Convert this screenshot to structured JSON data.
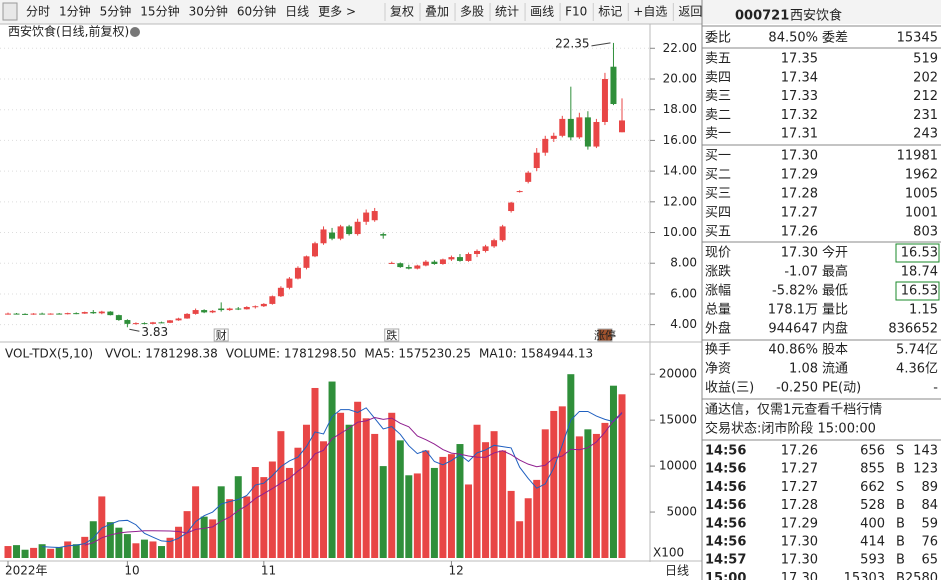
{
  "toolbar": {
    "periods": [
      "分时",
      "1分钟",
      "5分钟",
      "15分钟",
      "30分钟",
      "60分钟",
      "日线",
      "更多 >"
    ],
    "active": 6,
    "active_color": "#e02020",
    "tools": [
      "复权",
      "叠加",
      "多股",
      "统计",
      "画线",
      "F10",
      "标记",
      "+自选",
      "返回"
    ]
  },
  "price_chart": {
    "type": "candlestick",
    "title": "西安饮食(日线,前复权)",
    "high_label": "22.35",
    "low_label": "3.83",
    "up_color": "#e84646",
    "down_color": "#2f8f3a",
    "grid": true,
    "ylim": [
      3.0,
      22.8
    ],
    "yticks": [
      {
        "value": 4,
        "label": "4.00"
      },
      {
        "value": 6,
        "label": "6.00"
      },
      {
        "value": 8,
        "label": "8.00"
      },
      {
        "value": 10,
        "label": "10.00"
      },
      {
        "value": 12,
        "label": "12.00"
      },
      {
        "value": 14,
        "label": "14.00"
      },
      {
        "value": 16,
        "label": "16.00"
      },
      {
        "value": 18,
        "label": "18.00"
      },
      {
        "value": 20,
        "label": "20.00"
      },
      {
        "value": 22,
        "label": "22.00"
      }
    ],
    "categories": [
      "2022年",
      null,
      null,
      null,
      null,
      null,
      null,
      null,
      null,
      null,
      null,
      null,
      null,
      null,
      "10",
      null,
      null,
      null,
      null,
      null,
      null,
      null,
      null,
      null,
      null,
      null,
      null,
      null,
      null,
      null,
      "11",
      null,
      null,
      null,
      null,
      null,
      null,
      null,
      null,
      null,
      null,
      null,
      null,
      null,
      null,
      null,
      null,
      null,
      null,
      null,
      null,
      null,
      "12",
      null,
      null,
      null,
      null,
      null,
      null,
      null,
      null,
      null,
      null,
      null,
      null,
      null,
      null,
      null,
      null,
      null,
      null,
      null,
      null
    ],
    "events": [
      null,
      null,
      null,
      null,
      null,
      null,
      null,
      null,
      null,
      null,
      null,
      null,
      null,
      null,
      null,
      null,
      null,
      null,
      null,
      null,
      null,
      null,
      null,
      null,
      null,
      "财",
      null,
      null,
      null,
      null,
      null,
      null,
      null,
      null,
      null,
      null,
      null,
      null,
      null,
      null,
      null,
      null,
      null,
      null,
      null,
      "跌",
      null,
      null,
      null,
      null,
      null,
      null,
      null,
      null,
      null,
      null,
      null,
      null,
      null,
      null,
      null,
      null,
      null,
      null,
      null,
      null,
      null,
      null,
      null,
      null,
      "涨停",
      null,
      null
    ],
    "ohlc": [
      [
        4.7,
        4.78,
        4.65,
        4.72
      ],
      [
        4.72,
        4.76,
        4.66,
        4.7
      ],
      [
        4.7,
        4.74,
        4.64,
        4.68
      ],
      [
        4.68,
        4.75,
        4.64,
        4.72
      ],
      [
        4.72,
        4.78,
        4.68,
        4.7
      ],
      [
        4.7,
        4.74,
        4.65,
        4.72
      ],
      [
        4.72,
        4.76,
        4.66,
        4.68
      ],
      [
        4.68,
        4.78,
        4.66,
        4.75
      ],
      [
        4.75,
        4.8,
        4.68,
        4.72
      ],
      [
        4.72,
        4.85,
        4.7,
        4.82
      ],
      [
        4.82,
        4.95,
        4.7,
        4.74
      ],
      [
        4.74,
        4.9,
        4.68,
        4.85
      ],
      [
        4.85,
        4.88,
        4.6,
        4.62
      ],
      [
        4.62,
        4.65,
        4.25,
        4.3
      ],
      [
        4.3,
        4.35,
        3.83,
        4.05
      ],
      [
        4.05,
        4.15,
        4.0,
        4.1
      ],
      [
        4.1,
        4.15,
        4.02,
        4.05
      ],
      [
        4.05,
        4.18,
        4.02,
        4.15
      ],
      [
        4.15,
        4.2,
        4.1,
        4.12
      ],
      [
        4.12,
        4.3,
        4.1,
        4.28
      ],
      [
        4.28,
        4.45,
        4.25,
        4.4
      ],
      [
        4.4,
        4.75,
        4.38,
        4.7
      ],
      [
        4.7,
        5.05,
        4.65,
        4.95
      ],
      [
        4.95,
        5.0,
        4.75,
        4.8
      ],
      [
        4.8,
        4.95,
        4.75,
        4.9
      ],
      [
        5.05,
        5.45,
        4.85,
        4.95
      ],
      [
        4.95,
        5.1,
        4.9,
        5.05
      ],
      [
        5.05,
        5.15,
        4.95,
        5.0
      ],
      [
        5.0,
        5.2,
        4.98,
        5.15
      ],
      [
        5.15,
        5.25,
        5.05,
        5.2
      ],
      [
        5.2,
        5.4,
        5.15,
        5.35
      ],
      [
        5.35,
        5.9,
        5.3,
        5.85
      ],
      [
        5.85,
        6.5,
        5.8,
        6.4
      ],
      [
        6.4,
        7.1,
        6.3,
        7.0
      ],
      [
        7.0,
        7.8,
        6.95,
        7.7
      ],
      [
        7.7,
        8.5,
        7.6,
        8.45
      ],
      [
        8.45,
        9.4,
        8.4,
        9.3
      ],
      [
        9.3,
        10.4,
        9.2,
        10.2
      ],
      [
        10.0,
        10.3,
        9.5,
        9.6
      ],
      [
        9.6,
        10.5,
        9.5,
        10.4
      ],
      [
        10.4,
        10.5,
        9.8,
        9.9
      ],
      [
        9.9,
        10.9,
        9.8,
        10.7
      ],
      [
        10.7,
        11.5,
        10.5,
        11.3
      ],
      [
        10.8,
        11.6,
        10.7,
        11.4
      ],
      [
        9.9,
        10.0,
        9.6,
        9.8
      ],
      [
        8.0,
        8.1,
        7.95,
        8.02
      ],
      [
        8.0,
        8.05,
        7.7,
        7.75
      ],
      [
        7.75,
        7.9,
        7.6,
        7.65
      ],
      [
        7.65,
        7.9,
        7.6,
        7.85
      ],
      [
        7.85,
        8.2,
        7.8,
        8.1
      ],
      [
        8.1,
        8.2,
        7.9,
        7.95
      ],
      [
        7.95,
        8.3,
        7.9,
        8.25
      ],
      [
        8.25,
        8.5,
        8.15,
        8.4
      ],
      [
        8.4,
        8.6,
        8.1,
        8.15
      ],
      [
        8.15,
        8.7,
        8.1,
        8.6
      ],
      [
        8.6,
        8.9,
        8.4,
        8.8
      ],
      [
        8.8,
        9.2,
        8.7,
        9.1
      ],
      [
        9.1,
        9.6,
        9.0,
        9.5
      ],
      [
        9.5,
        10.5,
        9.4,
        10.4
      ],
      [
        11.4,
        12.0,
        11.3,
        11.95
      ],
      [
        12.7,
        12.75,
        12.6,
        12.7
      ],
      [
        13.3,
        14.0,
        13.2,
        13.9
      ],
      [
        14.2,
        15.5,
        14.0,
        15.2
      ],
      [
        15.2,
        16.3,
        15.0,
        16.1
      ],
      [
        16.1,
        16.5,
        15.9,
        16.3
      ],
      [
        16.3,
        17.6,
        16.2,
        17.4
      ],
      [
        17.4,
        19.5,
        16.0,
        16.2
      ],
      [
        16.2,
        17.8,
        16.1,
        17.5
      ],
      [
        17.5,
        17.9,
        15.4,
        15.6
      ],
      [
        15.6,
        17.4,
        15.5,
        17.2
      ],
      [
        17.2,
        20.4,
        17.0,
        20.0
      ],
      [
        20.8,
        22.35,
        18.3,
        18.37
      ],
      [
        16.53,
        18.74,
        16.53,
        17.3
      ]
    ]
  },
  "volume_chart": {
    "type": "bar",
    "indicator": "VOL-TDX(5,10)",
    "unit_label": "X100",
    "period_label": "日线",
    "legend": [
      {
        "text": "VVOL: 1781298.38",
        "color": "#222"
      },
      {
        "text": "VOLUME: 1781298.50",
        "color": "#2060c0"
      },
      {
        "text": "MA5: 1575230.25",
        "color": "#2060c0"
      },
      {
        "text": "MA10: 1584944.13",
        "color": "#902090"
      }
    ],
    "ma5_color": "#2060c0",
    "ma10_color": "#902090",
    "ylim": [
      0,
      21000
    ],
    "yticks": [
      5000,
      10000,
      15000,
      20000
    ],
    "values": [
      1300,
      1400,
      900,
      1100,
      1500,
      1000,
      1200,
      1800,
      1500,
      2300,
      4000,
      6700,
      3900,
      3300,
      2600,
      1600,
      2000,
      1800,
      1300,
      2200,
      3400,
      5100,
      7800,
      4500,
      4200,
      7800,
      6400,
      8900,
      6700,
      9900,
      8800,
      10500,
      13800,
      9800,
      12000,
      14500,
      18500,
      12700,
      19200,
      15800,
      14500,
      17000,
      15200,
      13500,
      10000,
      15800,
      12800,
      9000,
      9200,
      11700,
      9800,
      11000,
      11300,
      12400,
      8000,
      14500,
      12600,
      13800,
      11700,
      7300,
      4000,
      6500,
      8500,
      14000,
      16000,
      16500,
      20000,
      13233,
      14000,
      13500,
      14700,
      18748,
      17813
    ]
  },
  "quote": {
    "code": "000721",
    "name": "西安饮食",
    "weibi": [
      {
        "text": "委比",
        "color": "#222"
      },
      {
        "text": "84.50%",
        "color": "#e02020"
      },
      {
        "text": "委差",
        "color": "#222"
      },
      {
        "text": "15345",
        "color": "#e02020"
      }
    ],
    "book": [
      [
        "卖五",
        "17.35",
        "519"
      ],
      [
        "卖四",
        "17.34",
        "202"
      ],
      [
        "卖三",
        "17.33",
        "212"
      ],
      [
        "卖二",
        "17.32",
        "231"
      ],
      [
        "卖一",
        "17.31",
        "243"
      ],
      [
        "买一",
        "17.30",
        "11981"
      ],
      [
        "买二",
        "17.29",
        "1962"
      ],
      [
        "买三",
        "17.28",
        "1005"
      ],
      [
        "买四",
        "17.27",
        "1001"
      ],
      [
        "买五",
        "17.26",
        "803"
      ]
    ],
    "book_price_color": "#1a8a2a",
    "stats": [
      [
        {
          "text": "现价"
        },
        {
          "text": "17.30",
          "color": "#1a8a2a"
        },
        {
          "text": "今开"
        },
        {
          "text": "16.53",
          "color": "#1a8a2a",
          "boxed": true
        }
      ],
      [
        {
          "text": "涨跌"
        },
        {
          "text": "-1.07",
          "color": "#1a8a2a"
        },
        {
          "text": "最高"
        },
        {
          "text": "18.74",
          "color": "#e02020"
        }
      ],
      [
        {
          "text": "涨幅"
        },
        {
          "text": "-5.82%",
          "color": "#1a8a2a"
        },
        {
          "text": "最低"
        },
        {
          "text": "16.53",
          "color": "#1a8a2a",
          "boxed": true
        }
      ],
      [
        {
          "text": "总量"
        },
        {
          "text": "178.1万",
          "color": "#222"
        },
        {
          "text": "量比"
        },
        {
          "text": "1.15",
          "color": "#e02020"
        }
      ],
      [
        {
          "text": "外盘"
        },
        {
          "text": "944647",
          "color": "#e02020"
        },
        {
          "text": "内盘"
        },
        {
          "text": "836652",
          "color": "#1a8a2a"
        }
      ]
    ],
    "fund": [
      [
        {
          "text": "换手"
        },
        {
          "text": "40.86%",
          "color": "#222"
        },
        {
          "text": "股本"
        },
        {
          "text": "5.74亿",
          "color": "#222"
        }
      ],
      [
        {
          "text": "净资"
        },
        {
          "text": "1.08",
          "color": "#222"
        },
        {
          "text": "流通"
        },
        {
          "text": "4.36亿",
          "color": "#222"
        }
      ],
      [
        {
          "text": "收益(三)"
        },
        {
          "text": "-0.250",
          "color": "#222"
        },
        {
          "text": "PE(动)"
        },
        {
          "text": "-",
          "color": "#222"
        }
      ]
    ],
    "ad": "通达信，仅需1元查看千档行情",
    "status": "交易状态:闭市阶段 15:00:00",
    "trades": [
      [
        "14:56",
        "17.26",
        "656",
        "S",
        "143",
        "#902090"
      ],
      [
        "14:56",
        "17.27",
        "855",
        "B",
        "123",
        "#902090"
      ],
      [
        "14:56",
        "17.27",
        "662",
        "S",
        "89",
        "#902090"
      ],
      [
        "14:56",
        "17.28",
        "528",
        "B",
        "84",
        "#902090"
      ],
      [
        "14:56",
        "17.29",
        "400",
        "B",
        "59",
        "#222"
      ],
      [
        "14:56",
        "17.30",
        "414",
        "B",
        "76",
        "#222"
      ],
      [
        "14:57",
        "17.30",
        "593",
        "B",
        "65",
        "#902090"
      ],
      [
        "15:00",
        "17.30",
        "15303",
        "B",
        "2580",
        "#902090"
      ]
    ],
    "trade_price_color": "#1a8a2a",
    "buy_color": "#e02020",
    "sell_color": "#1a8a2a"
  }
}
